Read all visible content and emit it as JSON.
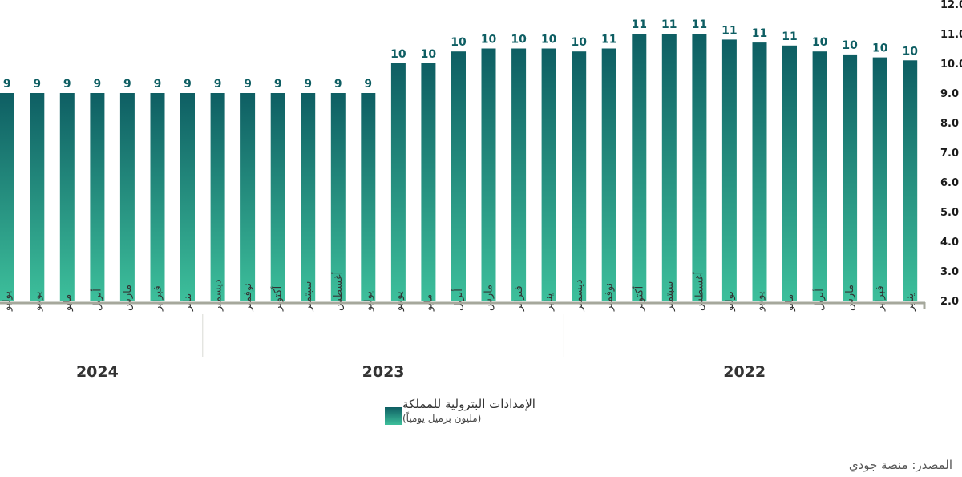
{
  "chart_data": {
    "type": "bar",
    "categories_right_to_left": [
      "يناير",
      "فبراير",
      "مارس",
      "أبريل",
      "مايو",
      "يونيو",
      "يوليو",
      "أغسطس",
      "سبتمبر",
      "أكتوبر",
      "نوفمبر",
      "ديسمبر",
      "يناير",
      "فبراير",
      "مارس",
      "أبريل",
      "مايو",
      "يونيو",
      "يوليو",
      "أغسطس",
      "سبتمبر",
      "أكتوبر",
      "نوفمبر",
      "ديسمبر",
      "يناير",
      "فبراير",
      "مارس",
      "أبريل",
      "مايو",
      "يونيو",
      "يوليو"
    ],
    "years": [
      {
        "label": "2022",
        "months": 12
      },
      {
        "label": "2023",
        "months": 12
      },
      {
        "label": "2024",
        "months": 7
      }
    ],
    "values_right_to_left": [
      10.1,
      10.2,
      10.3,
      10.4,
      10.6,
      10.7,
      10.8,
      11.0,
      11.0,
      11.0,
      10.5,
      10.4,
      10.5,
      10.5,
      10.5,
      10.4,
      10.0,
      10.0,
      9.0,
      9.0,
      9.0,
      9.0,
      9.0,
      9.0,
      9.0,
      9.0,
      9.0,
      9.0,
      9.0,
      9.0,
      9.0
    ],
    "data_labels_right_to_left": [
      "10",
      "10",
      "10",
      "10",
      "11",
      "11",
      "11",
      "11",
      "11",
      "11",
      "11",
      "10",
      "10",
      "10",
      "10",
      "10",
      "10",
      "10",
      "9",
      "9",
      "9",
      "9",
      "9",
      "9",
      "9",
      "9",
      "9",
      "9",
      "9",
      "9",
      "9"
    ],
    "y_ticks": [
      "2.0",
      "3.0",
      "4.0",
      "5.0",
      "6.0",
      "7.0",
      "8.0",
      "9.0",
      "10.0",
      "11.0",
      "12.0"
    ],
    "ylim": [
      2,
      12
    ],
    "series_name": "الإمدادات البترولية للمملكة",
    "unit": "(مليون برميل يومياً)",
    "colors": {
      "bar_top": "#0e5e63",
      "bar_bottom": "#3dbf9b",
      "axis": "#a6a89c",
      "label": "#0e5e63"
    }
  },
  "legend": {
    "title": "الإمدادات البترولية للمملكة",
    "subtitle": "(مليون برميل يومياً)"
  },
  "source": "المصدر: منصة جودي"
}
